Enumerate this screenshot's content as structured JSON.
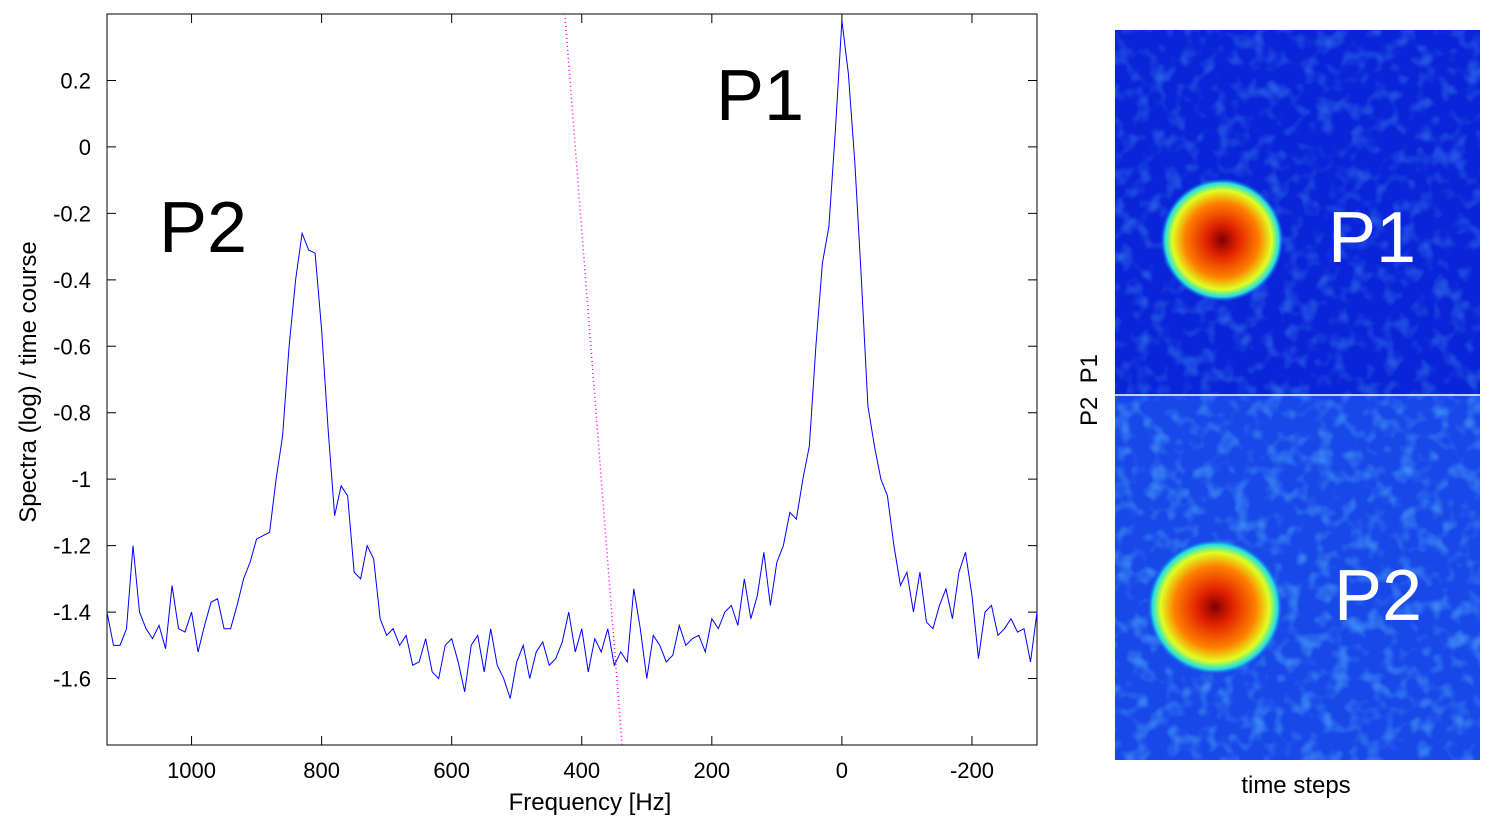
{
  "chart_data": {
    "type": "line",
    "xlabel": "Frequency [Hz]",
    "ylabel": "Spectra (log) / time course",
    "annotations": [
      "P1",
      "P2"
    ],
    "xlim": [
      1130,
      -300
    ],
    "ylim": [
      -1.8,
      0.4
    ],
    "xticks": [
      1000,
      800,
      600,
      400,
      200,
      0,
      -200
    ],
    "yticks": [
      -1.6,
      -1.4,
      -1.2,
      -1,
      -0.8,
      -0.6,
      -0.4,
      -0.2,
      0,
      0.2
    ],
    "series": [
      {
        "color": "#0000ff",
        "x": [
          1130,
          1120,
          1110,
          1100,
          1090,
          1080,
          1070,
          1060,
          1050,
          1040,
          1030,
          1020,
          1010,
          1000,
          990,
          980,
          970,
          960,
          950,
          940,
          930,
          920,
          910,
          900,
          890,
          880,
          870,
          860,
          850,
          840,
          830,
          820,
          810,
          800,
          790,
          780,
          770,
          760,
          750,
          740,
          730,
          720,
          710,
          700,
          690,
          680,
          670,
          660,
          650,
          640,
          630,
          620,
          610,
          600,
          590,
          580,
          570,
          560,
          550,
          540,
          530,
          520,
          510,
          500,
          490,
          480,
          470,
          460,
          450,
          440,
          430,
          420,
          410,
          400,
          390,
          380,
          370,
          360,
          350,
          340,
          330,
          320,
          310,
          300,
          290,
          280,
          270,
          260,
          250,
          240,
          230,
          220,
          210,
          200,
          190,
          180,
          170,
          160,
          150,
          140,
          130,
          120,
          110,
          100,
          90,
          80,
          70,
          60,
          50,
          40,
          30,
          20,
          10,
          0,
          -10,
          -20,
          -30,
          -40,
          -50,
          -60,
          -70,
          -80,
          -90,
          -100,
          -110,
          -120,
          -130,
          -140,
          -150,
          -160,
          -170,
          -180,
          -190,
          -200,
          -210,
          -220,
          -230,
          -240,
          -250,
          -260,
          -270,
          -280,
          -290,
          -300
        ],
        "values": [
          -1.4,
          -1.5,
          -1.5,
          -1.45,
          -1.2,
          -1.4,
          -1.45,
          -1.48,
          -1.44,
          -1.51,
          -1.32,
          -1.45,
          -1.46,
          -1.4,
          -1.52,
          -1.44,
          -1.37,
          -1.36,
          -1.45,
          -1.45,
          -1.38,
          -1.3,
          -1.25,
          -1.18,
          -1.17,
          -1.16,
          -1.0,
          -0.87,
          -0.6,
          -0.4,
          -0.26,
          -0.31,
          -0.32,
          -0.55,
          -0.85,
          -1.11,
          -1.02,
          -1.05,
          -1.28,
          -1.3,
          -1.2,
          -1.24,
          -1.42,
          -1.47,
          -1.45,
          -1.5,
          -1.47,
          -1.56,
          -1.55,
          -1.48,
          -1.58,
          -1.6,
          -1.5,
          -1.48,
          -1.55,
          -1.64,
          -1.5,
          -1.47,
          -1.58,
          -1.45,
          -1.56,
          -1.6,
          -1.66,
          -1.55,
          -1.5,
          -1.6,
          -1.52,
          -1.49,
          -1.56,
          -1.54,
          -1.49,
          -1.4,
          -1.52,
          -1.45,
          -1.58,
          -1.48,
          -1.52,
          -1.45,
          -1.56,
          -1.52,
          -1.55,
          -1.33,
          -1.45,
          -1.6,
          -1.47,
          -1.5,
          -1.55,
          -1.53,
          -1.44,
          -1.5,
          -1.48,
          -1.47,
          -1.52,
          -1.42,
          -1.45,
          -1.4,
          -1.38,
          -1.44,
          -1.3,
          -1.42,
          -1.35,
          -1.22,
          -1.38,
          -1.25,
          -1.2,
          -1.1,
          -1.12,
          -1.0,
          -0.9,
          -0.6,
          -0.35,
          -0.24,
          0.05,
          0.38,
          0.22,
          -0.05,
          -0.4,
          -0.78,
          -0.9,
          -1.0,
          -1.05,
          -1.2,
          -1.32,
          -1.28,
          -1.4,
          -1.28,
          -1.43,
          -1.45,
          -1.38,
          -1.33,
          -1.42,
          -1.28,
          -1.22,
          -1.35,
          -1.54,
          -1.4,
          -1.38,
          -1.47,
          -1.45,
          -1.42,
          -1.46,
          -1.45,
          -1.55,
          -1.4
        ]
      },
      {
        "color": "#ff00ff",
        "dotted": true,
        "x": [
          426,
          338
        ],
        "values": [
          0.4,
          -1.8
        ]
      }
    ]
  },
  "images": {
    "xlabel": "time steps",
    "ylabel": "P2  P1",
    "panels": [
      {
        "label": "P1"
      },
      {
        "label": "P2"
      }
    ]
  }
}
